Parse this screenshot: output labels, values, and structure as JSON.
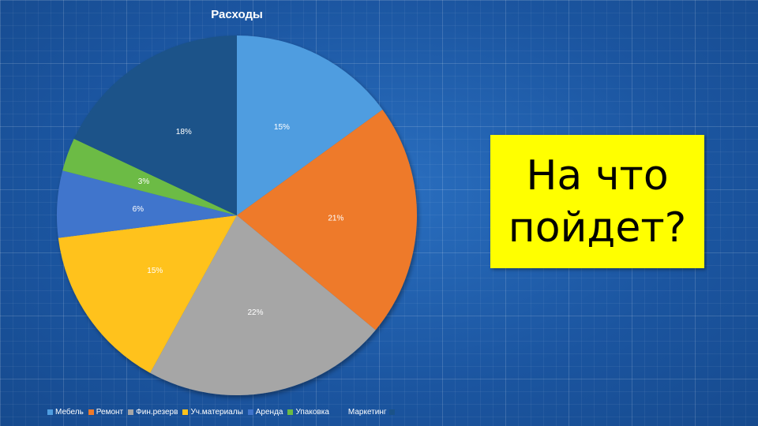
{
  "chart_data": {
    "type": "pie",
    "title": "Расходы",
    "start_angle_deg": 0,
    "direction": "clockwise",
    "slices": [
      {
        "label": "Мебель",
        "value": 15,
        "text": "15%",
        "color": "#4f9de0"
      },
      {
        "label": "Ремонт",
        "value": 21,
        "text": "21%",
        "color": "#ee7a2a"
      },
      {
        "label": "Фин.резерв",
        "value": 22,
        "text": "22%",
        "color": "#a6a6a6"
      },
      {
        "label": "Уч.материалы",
        "value": 15,
        "text": "15%",
        "color": "#ffc21c"
      },
      {
        "label": "Аренда",
        "value": 6,
        "text": "6%",
        "color": "#3f74cc"
      },
      {
        "label": "Упаковка",
        "value": 3,
        "text": "3%",
        "color": "#6cbb45"
      },
      {
        "label": "Маркетинг",
        "value": 18,
        "text": "18%",
        "color": "#1a5289"
      }
    ],
    "legend_position": "bottom"
  },
  "callout": {
    "line1": "На что",
    "line2": "пойдет?",
    "background": "#ffff00"
  }
}
